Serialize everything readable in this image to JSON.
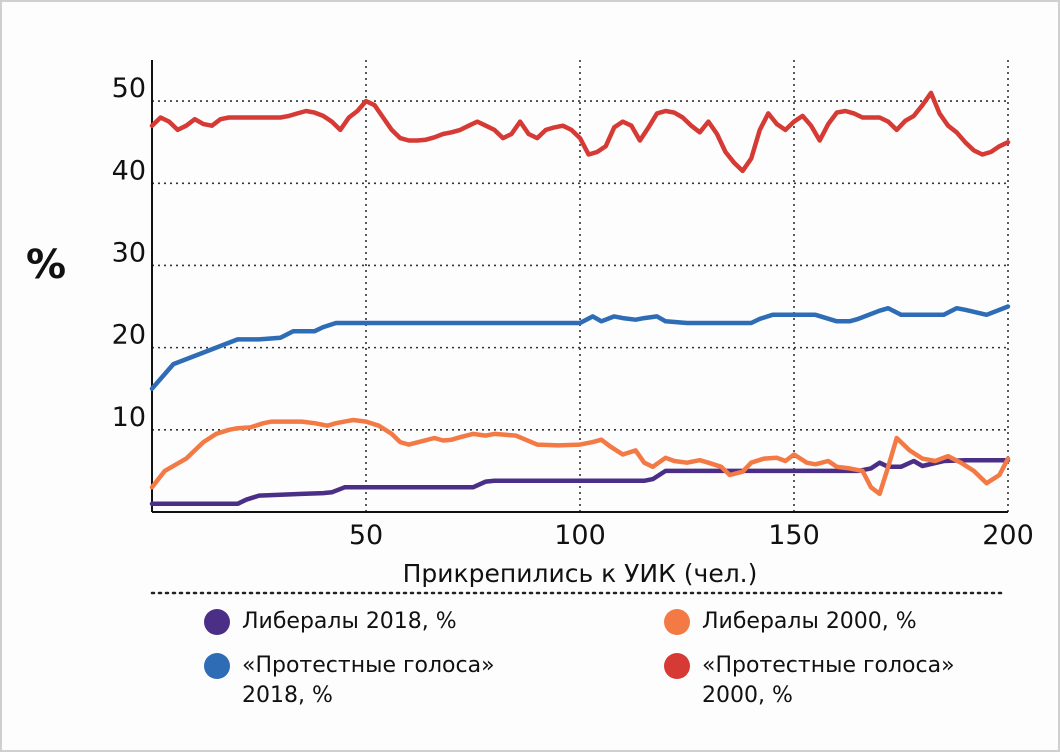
{
  "chart_data": {
    "type": "line",
    "xlabel": "Прикрепились к УИК (чел.)",
    "ylabel": "%",
    "xlim": [
      0,
      200
    ],
    "ylim": [
      0,
      55
    ],
    "xticks": [
      50,
      100,
      150,
      200
    ],
    "yticks": [
      10,
      20,
      30,
      40,
      50
    ],
    "grid": "dotted",
    "legend_position": "bottom",
    "series": [
      {
        "name": "Либералы 2018, %",
        "color": "#4b2f86",
        "x": [
          0,
          10,
          20,
          22,
          25,
          30,
          35,
          40,
          42,
          45,
          50,
          55,
          60,
          65,
          70,
          75,
          78,
          80,
          85,
          90,
          95,
          100,
          105,
          110,
          115,
          117,
          120,
          125,
          130,
          135,
          140,
          145,
          150,
          155,
          160,
          165,
          168,
          170,
          172,
          175,
          178,
          180,
          185,
          190,
          195,
          200
        ],
        "y": [
          1,
          1,
          1,
          1.5,
          2,
          2.1,
          2.2,
          2.3,
          2.4,
          3,
          3,
          3,
          3,
          3,
          3,
          3,
          3.7,
          3.8,
          3.8,
          3.8,
          3.8,
          3.8,
          3.8,
          3.8,
          3.8,
          4,
          5,
          5,
          5,
          5,
          5,
          5,
          5,
          5,
          5,
          5,
          5.3,
          6,
          5.5,
          5.5,
          6.2,
          5.6,
          6.2,
          6.3,
          6.3,
          6.3
        ]
      },
      {
        "name": "Либералы 2000, %",
        "color": "#f47a45",
        "x": [
          0,
          3,
          8,
          12,
          15,
          18,
          20,
          23,
          26,
          28,
          30,
          35,
          38,
          41,
          43,
          45,
          47,
          50,
          53,
          56,
          58,
          60,
          63,
          66,
          68,
          70,
          72,
          75,
          78,
          80,
          85,
          90,
          95,
          100,
          103,
          105,
          107,
          110,
          113,
          115,
          117,
          120,
          122,
          125,
          128,
          130,
          133,
          135,
          138,
          140,
          143,
          146,
          148,
          150,
          153,
          155,
          158,
          160,
          163,
          166,
          168,
          170,
          172,
          174,
          177,
          180,
          183,
          186,
          189,
          192,
          195,
          198,
          200
        ],
        "y": [
          3,
          5,
          6.5,
          8.5,
          9.5,
          10,
          10.2,
          10.3,
          10.8,
          11,
          11,
          11,
          10.8,
          10.5,
          10.8,
          11,
          11.2,
          11,
          10.5,
          9.5,
          8.5,
          8.2,
          8.6,
          9,
          8.7,
          8.8,
          9.1,
          9.5,
          9.3,
          9.5,
          9.3,
          8.2,
          8.1,
          8.2,
          8.5,
          8.8,
          8.0,
          7.0,
          7.5,
          6.0,
          5.5,
          6.6,
          6.2,
          6.0,
          6.3,
          6.0,
          5.5,
          4.5,
          4.9,
          6.0,
          6.5,
          6.6,
          6.2,
          7.0,
          6.0,
          5.8,
          6.2,
          5.5,
          5.3,
          5.0,
          3.0,
          2.2,
          5.5,
          9.0,
          7.5,
          6.5,
          6.2,
          6.8,
          6.0,
          5.0,
          3.5,
          4.5,
          6.5
        ]
      },
      {
        "name": "«Протестные голоса»\n2018, %",
        "color": "#2e6db5",
        "x": [
          0,
          5,
          10,
          15,
          20,
          22,
          25,
          30,
          33,
          35,
          38,
          40,
          43,
          45,
          50,
          55,
          60,
          65,
          70,
          75,
          80,
          85,
          90,
          95,
          100,
          103,
          105,
          108,
          110,
          113,
          115,
          118,
          120,
          125,
          130,
          135,
          140,
          142,
          145,
          150,
          153,
          155,
          160,
          163,
          165,
          170,
          172,
          175,
          180,
          185,
          188,
          190,
          195,
          200
        ],
        "y": [
          15,
          18,
          19,
          20,
          21,
          21,
          21,
          21.2,
          22,
          22,
          22,
          22.5,
          23,
          23,
          23,
          23,
          23,
          23,
          23,
          23,
          23,
          23,
          23,
          23,
          23,
          23.8,
          23.2,
          23.8,
          23.6,
          23.4,
          23.6,
          23.8,
          23.2,
          23,
          23,
          23,
          23,
          23.5,
          24,
          24,
          24,
          24,
          23.2,
          23.2,
          23.5,
          24.5,
          24.8,
          24,
          24,
          24,
          24.8,
          24.6,
          24,
          25
        ]
      },
      {
        "name": "«Протестные голоса»\n2000, %",
        "color": "#d63a35",
        "x": [
          0,
          2,
          4,
          6,
          8,
          10,
          12,
          14,
          16,
          18,
          20,
          22,
          24,
          26,
          28,
          30,
          32,
          34,
          36,
          38,
          40,
          42,
          44,
          46,
          48,
          50,
          52,
          54,
          56,
          58,
          60,
          62,
          64,
          66,
          68,
          70,
          72,
          74,
          76,
          78,
          80,
          82,
          84,
          86,
          88,
          90,
          92,
          94,
          96,
          98,
          100,
          102,
          104,
          106,
          108,
          110,
          112,
          114,
          116,
          118,
          120,
          122,
          124,
          126,
          128,
          130,
          132,
          134,
          136,
          138,
          140,
          142,
          144,
          146,
          148,
          150,
          152,
          154,
          156,
          158,
          160,
          162,
          164,
          166,
          168,
          170,
          172,
          174,
          176,
          178,
          180,
          182,
          184,
          186,
          188,
          190,
          192,
          194,
          196,
          198,
          200
        ],
        "y": [
          47,
          48,
          47.5,
          46.5,
          47,
          47.8,
          47.2,
          47,
          47.8,
          48,
          48,
          48,
          48,
          48,
          48,
          48,
          48.2,
          48.5,
          48.8,
          48.6,
          48.2,
          47.5,
          46.5,
          48,
          48.8,
          50,
          49.5,
          48,
          46.5,
          45.5,
          45.2,
          45.2,
          45.3,
          45.6,
          46,
          46.2,
          46.5,
          47,
          47.5,
          47,
          46.5,
          45.5,
          46,
          47.5,
          46,
          45.5,
          46.5,
          46.8,
          47,
          46.5,
          45.5,
          43.5,
          43.8,
          44.5,
          46.8,
          47.5,
          47,
          45.2,
          46.8,
          48.5,
          48.8,
          48.6,
          48,
          47,
          46.2,
          47.5,
          46,
          43.8,
          42.5,
          41.5,
          43,
          46.5,
          48.5,
          47.2,
          46.5,
          47.5,
          48.2,
          47,
          45.2,
          47.2,
          48.6,
          48.8,
          48.5,
          48,
          48,
          48,
          47.5,
          46.5,
          47.6,
          48.2,
          49.5,
          51,
          48.5,
          47,
          46.2,
          45,
          44,
          43.5,
          43.8,
          44.5,
          45
        ]
      }
    ]
  }
}
